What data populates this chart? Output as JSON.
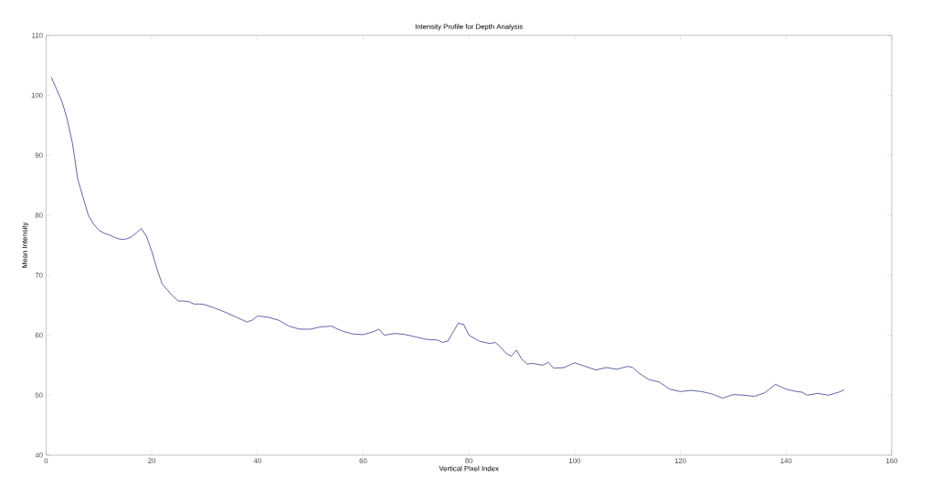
{
  "chart_data": {
    "type": "line",
    "title": "Intensity Profile for Depth Analysis",
    "xlabel": "Vertical Pixel Index",
    "ylabel": "Mean Intensity",
    "xlim": [
      0,
      160
    ],
    "ylim": [
      40,
      110
    ],
    "xticks": [
      0,
      20,
      40,
      60,
      80,
      100,
      120,
      140,
      160
    ],
    "yticks": [
      40,
      50,
      60,
      70,
      80,
      90,
      100,
      110
    ],
    "grid": false,
    "marker": "none",
    "line_style": "solid",
    "series": [
      {
        "color": "#2e3a8c",
        "x": [
          1,
          2,
          3,
          4,
          5,
          6,
          7,
          8,
          9,
          10,
          11,
          12,
          13,
          14,
          15,
          16,
          17,
          18,
          19,
          20,
          21,
          22,
          23,
          24,
          25,
          26,
          27,
          28,
          29,
          30,
          31,
          32,
          34,
          36,
          38,
          39,
          40,
          42,
          44,
          46,
          48,
          50,
          52,
          54,
          56,
          58,
          60,
          62,
          63,
          64,
          66,
          68,
          70,
          72,
          74,
          75,
          76,
          77,
          78,
          79,
          80,
          82,
          84,
          85,
          86,
          87,
          88,
          89,
          90,
          91,
          92,
          94,
          95,
          96,
          98,
          100,
          102,
          104,
          106,
          108,
          110,
          111,
          112,
          114,
          116,
          118,
          120,
          122,
          124,
          126,
          128,
          130,
          132,
          134,
          136,
          138,
          140,
          142,
          143,
          144,
          146,
          148,
          150,
          151
        ],
        "values": [
          103,
          101,
          99,
          96,
          92,
          86,
          83,
          80,
          78.5,
          77.5,
          77,
          76.7,
          76.3,
          76,
          76,
          76.3,
          77,
          77.8,
          76.5,
          74,
          71,
          68.5,
          67.5,
          66.5,
          65.7,
          65.7,
          65.6,
          65.2,
          65.2,
          65.1,
          64.8,
          64.5,
          63.8,
          63,
          62.2,
          62.5,
          63.2,
          63,
          62.5,
          61.5,
          61,
          61,
          61.4,
          61.5,
          60.7,
          60.2,
          60.1,
          60.6,
          61,
          60,
          60.3,
          60.1,
          59.7,
          59.3,
          59.2,
          58.8,
          59,
          60.5,
          62,
          61.8,
          60,
          59,
          58.6,
          58.8,
          58,
          57,
          56.5,
          57.5,
          56,
          55.2,
          55.3,
          55,
          55.5,
          54.5,
          54.6,
          55.4,
          54.8,
          54.2,
          54.6,
          54.3,
          54.8,
          54.6,
          53.8,
          52.6,
          52.2,
          51,
          50.6,
          50.8,
          50.6,
          50.2,
          49.5,
          50.1,
          50,
          49.8,
          50.4,
          51.8,
          51,
          50.6,
          50.5,
          50,
          50.3,
          50,
          50.5,
          50.9
        ]
      }
    ]
  }
}
